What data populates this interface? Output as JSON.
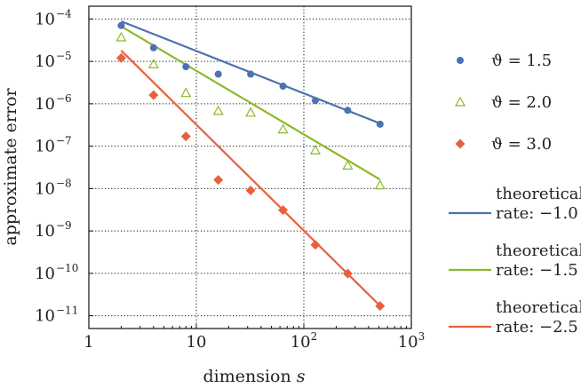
{
  "chart_data": {
    "type": "scatter",
    "xlabel": "dimension",
    "xlabel_var": "s",
    "ylabel": "approximate error",
    "x_scale": "log",
    "y_scale": "log",
    "xlim": [
      1,
      1000
    ],
    "ylim": [
      5e-12,
      0.0002
    ],
    "grid": true,
    "legend_position": "right, outside",
    "x_ticks": [
      {
        "v": 1,
        "base": "1",
        "exp": ""
      },
      {
        "v": 10,
        "base": "10",
        "exp": ""
      },
      {
        "v": 100,
        "base": "10",
        "exp": "2"
      },
      {
        "v": 1000,
        "base": "10",
        "exp": "3"
      }
    ],
    "y_ticks": [
      {
        "v": 0.0001,
        "base": "10",
        "exp": "−4"
      },
      {
        "v": 1e-05,
        "base": "10",
        "exp": "−5"
      },
      {
        "v": 1e-06,
        "base": "10",
        "exp": "−6"
      },
      {
        "v": 1e-07,
        "base": "10",
        "exp": "−7"
      },
      {
        "v": 1e-08,
        "base": "10",
        "exp": "−8"
      },
      {
        "v": 1e-09,
        "base": "10",
        "exp": "−9"
      },
      {
        "v": 1e-10,
        "base": "10",
        "exp": "−10"
      },
      {
        "v": 1e-11,
        "base": "10",
        "exp": "−11"
      }
    ],
    "x": [
      2,
      4,
      8,
      16,
      32,
      64,
      128,
      256,
      512
    ],
    "series": [
      {
        "name": "ϑ = 1.5",
        "marker": "circle",
        "color": "#4c72b0",
        "values": [
          7e-05,
          2.1e-05,
          7.5e-06,
          5e-06,
          5e-06,
          2.6e-06,
          1.2e-06,
          7e-07,
          3.3e-07
        ]
      },
      {
        "name": "ϑ = 2.0",
        "marker": "triangle",
        "color": "#8cb82c",
        "values": [
          3.7e-05,
          8.6e-06,
          1.8e-06,
          6.8e-07,
          6.2e-07,
          2.5e-07,
          8e-08,
          3.5e-08,
          1.2e-08
        ]
      },
      {
        "name": "ϑ = 3.0",
        "marker": "diamond",
        "color": "#e8603c",
        "values": [
          1.2e-05,
          1.6e-06,
          1.7e-07,
          1.6e-08,
          9e-09,
          3.1e-09,
          4.7e-10,
          9.9e-11,
          1.7e-11
        ]
      }
    ],
    "rate_lines": [
      {
        "label1": "theoretical",
        "label2": "rate:",
        "label3": "−1.0",
        "rate": -1.0,
        "color": "#4c72b0",
        "x0": 2,
        "y0": 8.8e-05,
        "x1": 512
      },
      {
        "label1": "theoretical",
        "label2": "rate:",
        "label3": "−1.5",
        "rate": -1.5,
        "color": "#8cb82c",
        "x0": 2,
        "y0": 6.7e-05,
        "x1": 512
      },
      {
        "label1": "theoretical",
        "label2": "rate:",
        "label3": "−2.5",
        "rate": -2.5,
        "color": "#e8603c",
        "x0": 2,
        "y0": 1.8e-05,
        "x1": 512
      }
    ]
  }
}
